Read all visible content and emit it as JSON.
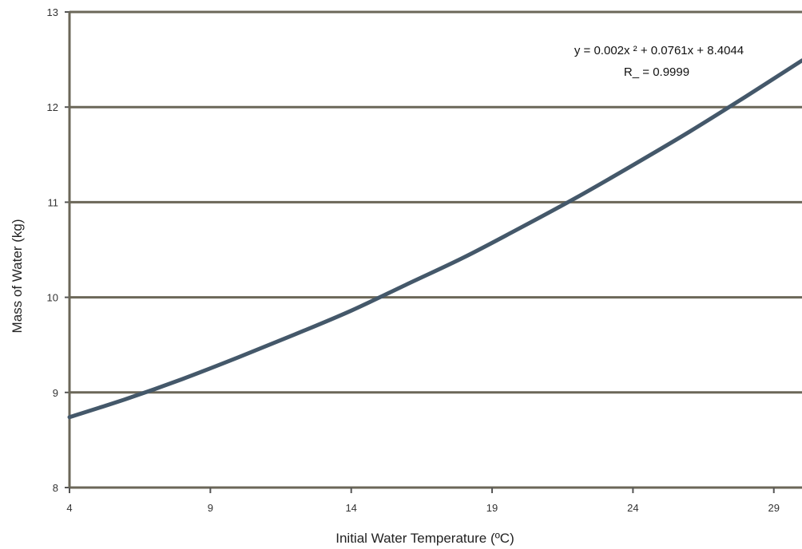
{
  "chart_data": {
    "type": "line",
    "title": "",
    "xlabel": "Initial Water Temperature (ºC)",
    "ylabel": "Mass of Water (kg)",
    "xlim": [
      4,
      30
    ],
    "ylim": [
      8,
      13
    ],
    "x_ticks": [
      4,
      9,
      14,
      19,
      24,
      29
    ],
    "y_ticks": [
      8,
      9,
      10,
      11,
      12,
      13
    ],
    "grid": "horizontal",
    "legend": "none",
    "series": [
      {
        "color": "#44586a",
        "x": [
          4,
          6,
          8,
          10,
          12,
          14,
          16,
          18,
          20,
          22,
          24,
          26,
          28,
          30
        ],
        "y": [
          8.74,
          8.93,
          9.14,
          9.37,
          9.61,
          9.86,
          10.14,
          10.42,
          10.73,
          11.05,
          11.39,
          11.74,
          12.11,
          12.49
        ]
      }
    ],
    "annotations": {
      "equation": "y = 0.002x ² + 0.0761x + 8.4044",
      "r_squared": "R_ = 0.9999"
    },
    "colors": {
      "gridline": "#6b6758",
      "axis": "#555555",
      "line": "#44586a"
    }
  }
}
